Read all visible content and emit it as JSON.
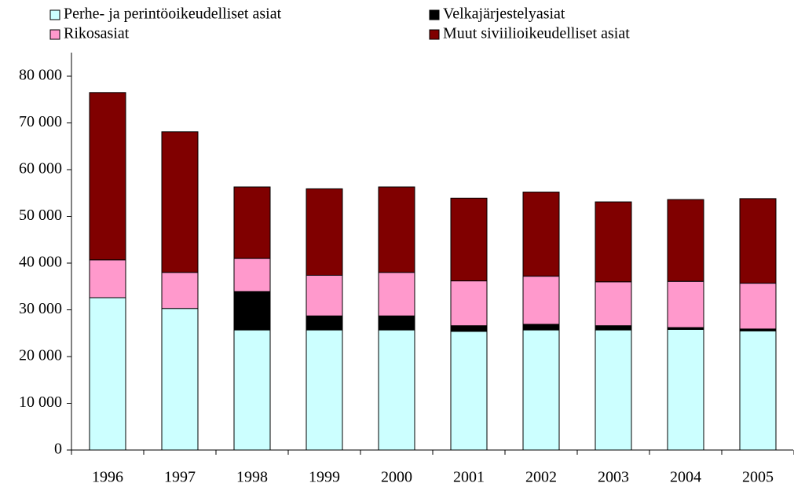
{
  "chart_data": {
    "type": "stacked_bar",
    "categories": [
      "1996",
      "1997",
      "1998",
      "1999",
      "2000",
      "2001",
      "2002",
      "2003",
      "2004",
      "2005"
    ],
    "series": [
      {
        "name": "Perhe- ja perintöoikeudelliset asiat",
        "color": "#ccffff",
        "values": [
          32600,
          30300,
          25700,
          25700,
          25700,
          25400,
          25700,
          25700,
          25800,
          25500
        ]
      },
      {
        "name": "Velkajärjestelyasiat",
        "color": "#000000",
        "values": [
          0,
          0,
          8200,
          3000,
          3000,
          1200,
          1200,
          900,
          400,
          400
        ]
      },
      {
        "name": "Rikosasiat",
        "color": "#ff99cc",
        "values": [
          8100,
          7700,
          7100,
          8700,
          9300,
          9600,
          10300,
          9400,
          9900,
          9800
        ]
      },
      {
        "name": "Muut siviilioikeudelliset asiat",
        "color": "#800000",
        "values": [
          35800,
          30100,
          15300,
          18500,
          18300,
          17700,
          18000,
          17100,
          17500,
          18100
        ]
      }
    ],
    "ylim": [
      0,
      80000
    ],
    "yticks": [
      0,
      {
        "value": 10000,
        "label": "10 000"
      },
      {
        "value": 20000,
        "label": "20 000"
      },
      {
        "value": 30000,
        "label": "30 000"
      },
      {
        "value": 40000,
        "label": "40 000"
      },
      {
        "value": 50000,
        "label": "50 000"
      },
      {
        "value": 60000,
        "label": "60 000"
      },
      {
        "value": 70000,
        "label": "70 000"
      },
      {
        "value": 80000,
        "label": "80 000"
      }
    ],
    "legend": "top"
  }
}
